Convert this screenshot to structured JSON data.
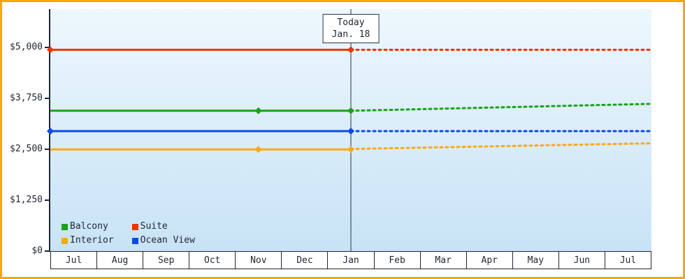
{
  "frame": {
    "border_color": "#ffa500"
  },
  "palette": {
    "plot_bg_top": "#eef7fd",
    "plot_bg_bottom": "#c8e3f6",
    "axis_color": "#1f2733",
    "text_color": "#1f2733",
    "today_line_color": "#2a3442",
    "box_bg": "#ffffff"
  },
  "chart_data": {
    "type": "line",
    "title": "",
    "grid": false,
    "legend_position": "bottom-left",
    "x_axis": {
      "columns": 13,
      "months": [
        "Jul",
        "Aug",
        "Sep",
        "Oct",
        "Nov",
        "Dec",
        "Jan",
        "Feb",
        "Mar",
        "Apr",
        "May",
        "Jun",
        "Jul"
      ]
    },
    "y_axis": {
      "max_value": 5950,
      "ylim": [
        0,
        5950
      ],
      "ticks": [
        {
          "label": "$5,000",
          "value": 5000
        },
        {
          "label": "$3,750",
          "value": 3750
        },
        {
          "label": "$2,500",
          "value": 2500
        },
        {
          "label": "$1,250",
          "value": 1250
        },
        {
          "label": "$0",
          "value": 0
        }
      ]
    },
    "today": {
      "x": 6.5,
      "label_line1": "Today",
      "label_line2": "Jan. 18"
    },
    "series": [
      {
        "name": "Balcony",
        "color": "#1aa21a",
        "history": [
          [
            0,
            3450
          ],
          [
            4.5,
            3450
          ],
          [
            6.5,
            3450
          ]
        ],
        "forecast": [
          [
            6.5,
            3450
          ],
          [
            13,
            3620
          ]
        ],
        "markers": [
          [
            4.5,
            3450
          ],
          [
            6.5,
            3450
          ]
        ]
      },
      {
        "name": "Suite",
        "color": "#ee3402",
        "history": [
          [
            0,
            4950
          ],
          [
            6.5,
            4950
          ]
        ],
        "forecast": [
          [
            6.5,
            4950
          ],
          [
            13,
            4950
          ]
        ],
        "markers": [
          [
            0,
            4950
          ],
          [
            6.5,
            4950
          ]
        ]
      },
      {
        "name": "Interior",
        "color": "#fca915",
        "history": [
          [
            0,
            2500
          ],
          [
            4.5,
            2500
          ],
          [
            6.5,
            2500
          ]
        ],
        "forecast": [
          [
            6.5,
            2510
          ],
          [
            13,
            2650
          ]
        ],
        "markers": [
          [
            4.5,
            2500
          ],
          [
            6.5,
            2500
          ]
        ]
      },
      {
        "name": "Ocean View",
        "color": "#0c49e8",
        "history": [
          [
            0,
            2950
          ],
          [
            6.5,
            2950
          ]
        ],
        "forecast": [
          [
            6.5,
            2950
          ],
          [
            13,
            2950
          ]
        ],
        "markers": [
          [
            0,
            2950
          ],
          [
            6.5,
            2950
          ]
        ]
      }
    ],
    "legend": {
      "order": [
        "Balcony",
        "Suite",
        "Interior",
        "Ocean View"
      ]
    }
  }
}
